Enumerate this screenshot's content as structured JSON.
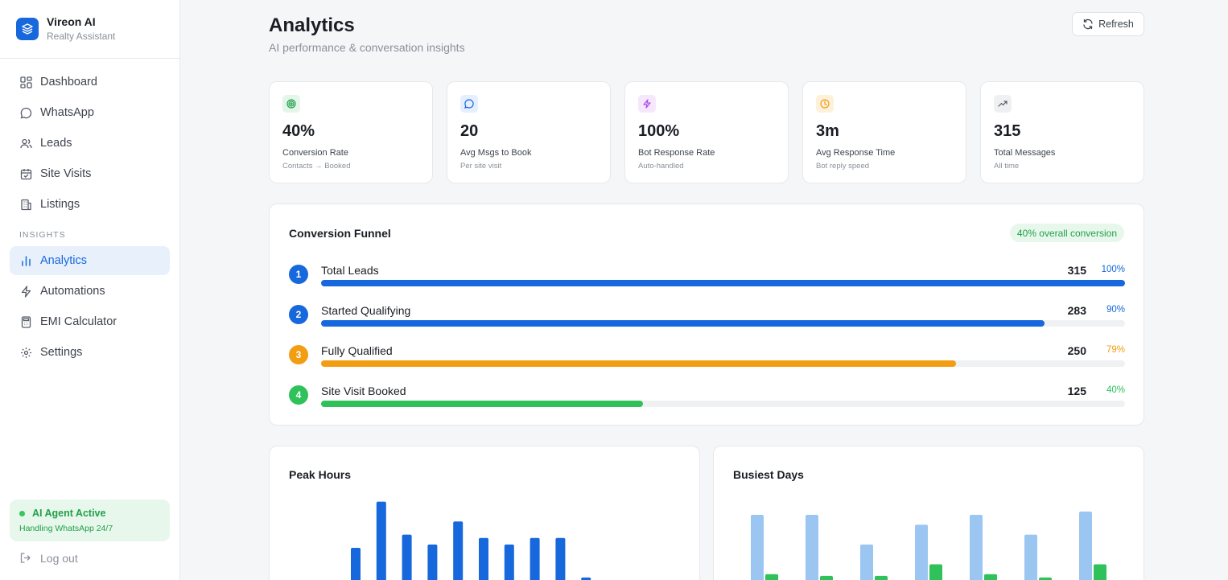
{
  "brand": {
    "name": "Vireon AI",
    "subtitle": "Realty Assistant",
    "accent": "#1668dc"
  },
  "nav": {
    "items": [
      {
        "label": "Dashboard",
        "icon": "dashboard-icon"
      },
      {
        "label": "WhatsApp",
        "icon": "chat-bubble-icon"
      },
      {
        "label": "Leads",
        "icon": "users-icon"
      },
      {
        "label": "Site Visits",
        "icon": "calendar-check-icon"
      },
      {
        "label": "Listings",
        "icon": "building-icon"
      }
    ],
    "section_label": "INSIGHTS",
    "insights": [
      {
        "label": "Analytics",
        "icon": "bar-chart-icon",
        "active": true
      },
      {
        "label": "Automations",
        "icon": "lightning-icon"
      },
      {
        "label": "EMI Calculator",
        "icon": "calculator-icon"
      },
      {
        "label": "Settings",
        "icon": "gear-icon"
      }
    ]
  },
  "agent": {
    "title": "AI Agent Active",
    "subtitle": "Handling WhatsApp 24/7",
    "color": "#22a049"
  },
  "logout_label": "Log out",
  "header": {
    "title": "Analytics",
    "subtitle": "AI performance & conversation insights",
    "refresh_label": "Refresh"
  },
  "stats": [
    {
      "value": "40%",
      "label": "Conversion Rate",
      "sub": "Contacts → Booked",
      "icon": "target-icon",
      "color": "#22a049",
      "bg": "#e4f6ea"
    },
    {
      "value": "20",
      "label": "Avg Msgs to Book",
      "sub": "Per site visit",
      "icon": "chat-bubble-icon",
      "color": "#1668dc",
      "bg": "#e6efff"
    },
    {
      "value": "100%",
      "label": "Bot Response Rate",
      "sub": "Auto-handled",
      "icon": "lightning-icon",
      "color": "#b045e8",
      "bg": "#f5e8fd"
    },
    {
      "value": "3m",
      "label": "Avg Response Time",
      "sub": "Bot reply speed",
      "icon": "clock-icon",
      "color": "#f29d12",
      "bg": "#fdf1dc"
    },
    {
      "value": "315",
      "label": "Total Messages",
      "sub": "All time",
      "icon": "trend-up-icon",
      "color": "#555b66",
      "bg": "#eff0f2"
    }
  ],
  "funnel": {
    "title": "Conversion Funnel",
    "badge": "40% overall conversion",
    "steps": [
      {
        "num": "1",
        "label": "Total Leads",
        "count": "315",
        "pct": "100%",
        "fraction": 1.0,
        "color": "#1668dc"
      },
      {
        "num": "2",
        "label": "Started Qualifying",
        "count": "283",
        "pct": "90%",
        "fraction": 0.9,
        "color": "#1668dc"
      },
      {
        "num": "3",
        "label": "Fully Qualified",
        "count": "250",
        "pct": "79%",
        "fraction": 0.79,
        "color": "#f29d12"
      },
      {
        "num": "4",
        "label": "Site Visit Booked",
        "count": "125",
        "pct": "40%",
        "fraction": 0.4,
        "color": "#2fc25b"
      }
    ]
  },
  "chart_data": [
    {
      "type": "bar",
      "title": "Peak Hours",
      "values": [
        10,
        24,
        14,
        11,
        18,
        13,
        11,
        13,
        13,
        1
      ],
      "color": "#1668dc"
    },
    {
      "type": "bar",
      "title": "Busiest Days",
      "series": [
        {
          "values": [
            20,
            20,
            11,
            17,
            20,
            14,
            21
          ],
          "color": "#9cc6f2"
        },
        {
          "values": [
            2,
            1.5,
            1.5,
            5,
            2,
            1,
            5
          ],
          "color": "#2fc25b"
        }
      ]
    }
  ]
}
